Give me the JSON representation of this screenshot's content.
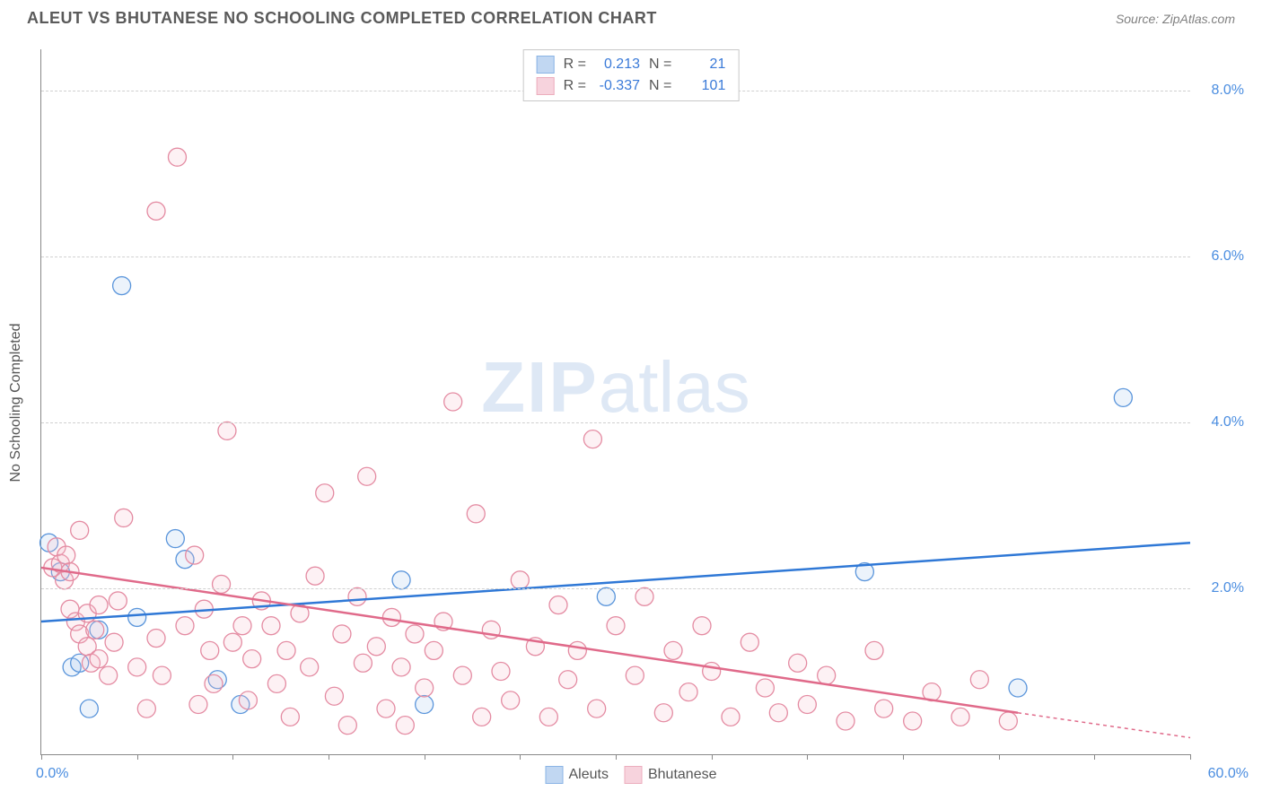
{
  "title": "ALEUT VS BHUTANESE NO SCHOOLING COMPLETED CORRELATION CHART",
  "source": "Source: ZipAtlas.com",
  "watermark_a": "ZIP",
  "watermark_b": "atlas",
  "ylabel": "No Schooling Completed",
  "chart": {
    "type": "scatter",
    "xlim": [
      0,
      60
    ],
    "ylim": [
      0,
      8.5
    ],
    "xtick_positions": [
      0,
      5,
      10,
      15,
      20,
      25,
      30,
      35,
      40,
      45,
      50,
      55,
      60
    ],
    "ytick_positions": [
      2,
      4,
      6,
      8
    ],
    "ytick_labels": [
      "2.0%",
      "4.0%",
      "6.0%",
      "8.0%"
    ],
    "x_axis_left_label": "0.0%",
    "x_axis_right_label": "60.0%",
    "grid_color": "#d0d0d0",
    "axis_color": "#888888",
    "background_color": "#ffffff",
    "marker_radius": 10,
    "marker_stroke_width": 1.3,
    "marker_fill_opacity": 0.22,
    "line_width": 2.5,
    "series": [
      {
        "name": "Aleuts",
        "color_stroke": "#5a95db",
        "color_fill": "#a8c7ed",
        "line_color": "#2f78d6",
        "R": "0.213",
        "N": "21",
        "trend": {
          "x1": 0,
          "y1": 1.6,
          "x2": 60,
          "y2": 2.55
        },
        "trend_dash": null,
        "points": [
          {
            "x": 0.4,
            "y": 2.55
          },
          {
            "x": 4.2,
            "y": 5.65
          },
          {
            "x": 3.0,
            "y": 1.5
          },
          {
            "x": 1.6,
            "y": 1.05
          },
          {
            "x": 2.0,
            "y": 1.1
          },
          {
            "x": 2.5,
            "y": 0.55
          },
          {
            "x": 5.0,
            "y": 1.65
          },
          {
            "x": 7.0,
            "y": 2.6
          },
          {
            "x": 7.5,
            "y": 2.35
          },
          {
            "x": 9.2,
            "y": 0.9
          },
          {
            "x": 10.4,
            "y": 0.6
          },
          {
            "x": 18.8,
            "y": 2.1
          },
          {
            "x": 20.0,
            "y": 0.6
          },
          {
            "x": 29.5,
            "y": 1.9
          },
          {
            "x": 43.0,
            "y": 2.2
          },
          {
            "x": 51.0,
            "y": 0.8
          },
          {
            "x": 56.5,
            "y": 4.3
          },
          {
            "x": 1.0,
            "y": 2.2
          }
        ]
      },
      {
        "name": "Bhutanese",
        "color_stroke": "#e48ba2",
        "color_fill": "#f5c1cf",
        "line_color": "#e06a8a",
        "R": "-0.337",
        "N": "101",
        "trend": {
          "x1": 0,
          "y1": 2.25,
          "x2": 51,
          "y2": 0.5
        },
        "trend_dash": {
          "x1": 51,
          "y1": 0.5,
          "x2": 60,
          "y2": 0.2
        },
        "points": [
          {
            "x": 0.6,
            "y": 2.25
          },
          {
            "x": 0.8,
            "y": 2.5
          },
          {
            "x": 1.0,
            "y": 2.3
          },
          {
            "x": 1.2,
            "y": 2.1
          },
          {
            "x": 1.3,
            "y": 2.4
          },
          {
            "x": 1.5,
            "y": 2.2
          },
          {
            "x": 1.5,
            "y": 1.75
          },
          {
            "x": 1.8,
            "y": 1.6
          },
          {
            "x": 2.0,
            "y": 1.45
          },
          {
            "x": 2.0,
            "y": 2.7
          },
          {
            "x": 2.4,
            "y": 1.7
          },
          {
            "x": 2.4,
            "y": 1.3
          },
          {
            "x": 2.6,
            "y": 1.1
          },
          {
            "x": 2.8,
            "y": 1.5
          },
          {
            "x": 3.0,
            "y": 1.8
          },
          {
            "x": 3.0,
            "y": 1.15
          },
          {
            "x": 3.5,
            "y": 0.95
          },
          {
            "x": 3.8,
            "y": 1.35
          },
          {
            "x": 4.0,
            "y": 1.85
          },
          {
            "x": 4.3,
            "y": 2.85
          },
          {
            "x": 5.0,
            "y": 1.05
          },
          {
            "x": 5.5,
            "y": 0.55
          },
          {
            "x": 6.0,
            "y": 1.4
          },
          {
            "x": 6.0,
            "y": 6.55
          },
          {
            "x": 6.3,
            "y": 0.95
          },
          {
            "x": 7.1,
            "y": 7.2
          },
          {
            "x": 7.5,
            "y": 1.55
          },
          {
            "x": 8.0,
            "y": 2.4
          },
          {
            "x": 8.2,
            "y": 0.6
          },
          {
            "x": 8.5,
            "y": 1.75
          },
          {
            "x": 8.8,
            "y": 1.25
          },
          {
            "x": 9.0,
            "y": 0.85
          },
          {
            "x": 9.4,
            "y": 2.05
          },
          {
            "x": 9.7,
            "y": 3.9
          },
          {
            "x": 10.0,
            "y": 1.35
          },
          {
            "x": 10.5,
            "y": 1.55
          },
          {
            "x": 10.8,
            "y": 0.65
          },
          {
            "x": 11.0,
            "y": 1.15
          },
          {
            "x": 11.5,
            "y": 1.85
          },
          {
            "x": 12.0,
            "y": 1.55
          },
          {
            "x": 12.3,
            "y": 0.85
          },
          {
            "x": 12.8,
            "y": 1.25
          },
          {
            "x": 13.0,
            "y": 0.45
          },
          {
            "x": 13.5,
            "y": 1.7
          },
          {
            "x": 14.0,
            "y": 1.05
          },
          {
            "x": 14.3,
            "y": 2.15
          },
          {
            "x": 14.8,
            "y": 3.15
          },
          {
            "x": 15.3,
            "y": 0.7
          },
          {
            "x": 15.7,
            "y": 1.45
          },
          {
            "x": 16.0,
            "y": 0.35
          },
          {
            "x": 16.5,
            "y": 1.9
          },
          {
            "x": 16.8,
            "y": 1.1
          },
          {
            "x": 17.0,
            "y": 3.35
          },
          {
            "x": 17.5,
            "y": 1.3
          },
          {
            "x": 18.0,
            "y": 0.55
          },
          {
            "x": 18.3,
            "y": 1.65
          },
          {
            "x": 18.8,
            "y": 1.05
          },
          {
            "x": 19.0,
            "y": 0.35
          },
          {
            "x": 19.5,
            "y": 1.45
          },
          {
            "x": 20.0,
            "y": 0.8
          },
          {
            "x": 20.5,
            "y": 1.25
          },
          {
            "x": 21.0,
            "y": 1.6
          },
          {
            "x": 21.5,
            "y": 4.25
          },
          {
            "x": 22.0,
            "y": 0.95
          },
          {
            "x": 22.7,
            "y": 2.9
          },
          {
            "x": 23.0,
            "y": 0.45
          },
          {
            "x": 23.5,
            "y": 1.5
          },
          {
            "x": 24.0,
            "y": 1.0
          },
          {
            "x": 24.5,
            "y": 0.65
          },
          {
            "x": 25.0,
            "y": 2.1
          },
          {
            "x": 25.8,
            "y": 1.3
          },
          {
            "x": 26.5,
            "y": 0.45
          },
          {
            "x": 27.0,
            "y": 1.8
          },
          {
            "x": 27.5,
            "y": 0.9
          },
          {
            "x": 28.0,
            "y": 1.25
          },
          {
            "x": 28.8,
            "y": 3.8
          },
          {
            "x": 29.0,
            "y": 0.55
          },
          {
            "x": 30.0,
            "y": 1.55
          },
          {
            "x": 31.0,
            "y": 0.95
          },
          {
            "x": 31.5,
            "y": 1.9
          },
          {
            "x": 32.5,
            "y": 0.5
          },
          {
            "x": 33.0,
            "y": 1.25
          },
          {
            "x": 33.8,
            "y": 0.75
          },
          {
            "x": 34.5,
            "y": 1.55
          },
          {
            "x": 35.0,
            "y": 1.0
          },
          {
            "x": 36.0,
            "y": 0.45
          },
          {
            "x": 37.0,
            "y": 1.35
          },
          {
            "x": 37.8,
            "y": 0.8
          },
          {
            "x": 38.5,
            "y": 0.5
          },
          {
            "x": 39.5,
            "y": 1.1
          },
          {
            "x": 40.0,
            "y": 0.6
          },
          {
            "x": 41.0,
            "y": 0.95
          },
          {
            "x": 42.0,
            "y": 0.4
          },
          {
            "x": 43.5,
            "y": 1.25
          },
          {
            "x": 44.0,
            "y": 0.55
          },
          {
            "x": 45.5,
            "y": 0.4
          },
          {
            "x": 46.5,
            "y": 0.75
          },
          {
            "x": 48.0,
            "y": 0.45
          },
          {
            "x": 49.0,
            "y": 0.9
          },
          {
            "x": 50.5,
            "y": 0.4
          }
        ]
      }
    ]
  },
  "legend_top": {
    "R_label": "R =",
    "N_label": "N ="
  },
  "legend_bottom": {
    "items": [
      "Aleuts",
      "Bhutanese"
    ]
  }
}
